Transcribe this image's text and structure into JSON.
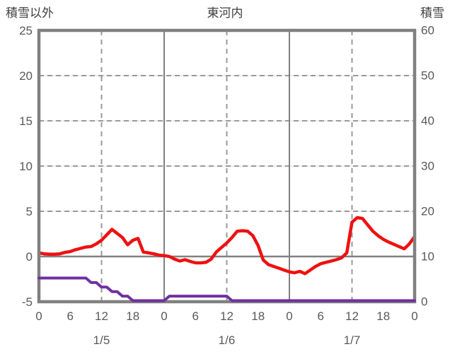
{
  "header": {
    "left_label": "積雪以外",
    "title": "東河内",
    "right_label": "積雪"
  },
  "chart_data": {
    "type": "line",
    "title": "東河内",
    "left_axis": {
      "label": "積雪以外",
      "min": -5,
      "max": 25,
      "ticks": [
        25,
        20,
        15,
        10,
        5,
        0,
        -5
      ]
    },
    "right_axis": {
      "label": "積雪",
      "min": 0,
      "max": 60,
      "ticks": [
        60,
        50,
        40,
        30,
        20,
        10,
        0
      ]
    },
    "x_axis": {
      "hours_total": 72,
      "hour_labels": [
        "0",
        "6",
        "12",
        "18"
      ],
      "end_hour_label": "0",
      "day_labels": [
        "1/5",
        "1/6",
        "1/7"
      ],
      "solid_vlines_hours": [
        24,
        48
      ],
      "dashed_vlines_hours": [
        12,
        36,
        60
      ]
    },
    "grid": "dashed horizontal every 5 (left axis), dashed vertical at 12h of each day, solid at day boundaries and zero line",
    "legend_position": "none",
    "series": [
      {
        "name": "temperature-non-snow",
        "axis": "left",
        "color": "#ee1111",
        "values": [
          0.4,
          0.3,
          0.25,
          0.25,
          0.3,
          0.45,
          0.55,
          0.75,
          0.9,
          1.05,
          1.1,
          1.4,
          1.8,
          2.4,
          3.0,
          2.55,
          2.1,
          1.3,
          1.8,
          2.0,
          0.5,
          0.4,
          0.3,
          0.15,
          0.1,
          0.0,
          -0.3,
          -0.5,
          -0.35,
          -0.55,
          -0.7,
          -0.7,
          -0.65,
          -0.3,
          0.5,
          1.0,
          1.5,
          2.1,
          2.8,
          2.85,
          2.8,
          2.3,
          1.2,
          -0.4,
          -0.9,
          -1.1,
          -1.3,
          -1.5,
          -1.7,
          -1.8,
          -1.65,
          -1.9,
          -1.5,
          -1.1,
          -0.8,
          -0.65,
          -0.5,
          -0.35,
          -0.15,
          0.4,
          3.8,
          4.3,
          4.2,
          3.5,
          2.8,
          2.3,
          1.9,
          1.6,
          1.35,
          1.1,
          0.85,
          1.4,
          2.2
        ]
      },
      {
        "name": "snow-depth",
        "axis": "right",
        "color": "#7030a0",
        "values": [
          5,
          5,
          5,
          5,
          5,
          5,
          5,
          5,
          5,
          5,
          4,
          4,
          3,
          3,
          2,
          2,
          1,
          1,
          0,
          0,
          0,
          0,
          0,
          0,
          0,
          1,
          1,
          1,
          1,
          1,
          1,
          1,
          1,
          1,
          1,
          1,
          1,
          0,
          0,
          0,
          0,
          0,
          0,
          0,
          0,
          0,
          0,
          0,
          0,
          0,
          0,
          0,
          0,
          0,
          0,
          0,
          0,
          0,
          0,
          0,
          0,
          0,
          0,
          0,
          0,
          0,
          0,
          0,
          0,
          0,
          0,
          0,
          0
        ]
      }
    ],
    "style": {
      "border_color": "#808080",
      "grid_dash_color": "#999999",
      "grid_faint_color": "#d9d9d9",
      "tick_text_color": "#595959",
      "zero_line_color": "#808080"
    }
  }
}
